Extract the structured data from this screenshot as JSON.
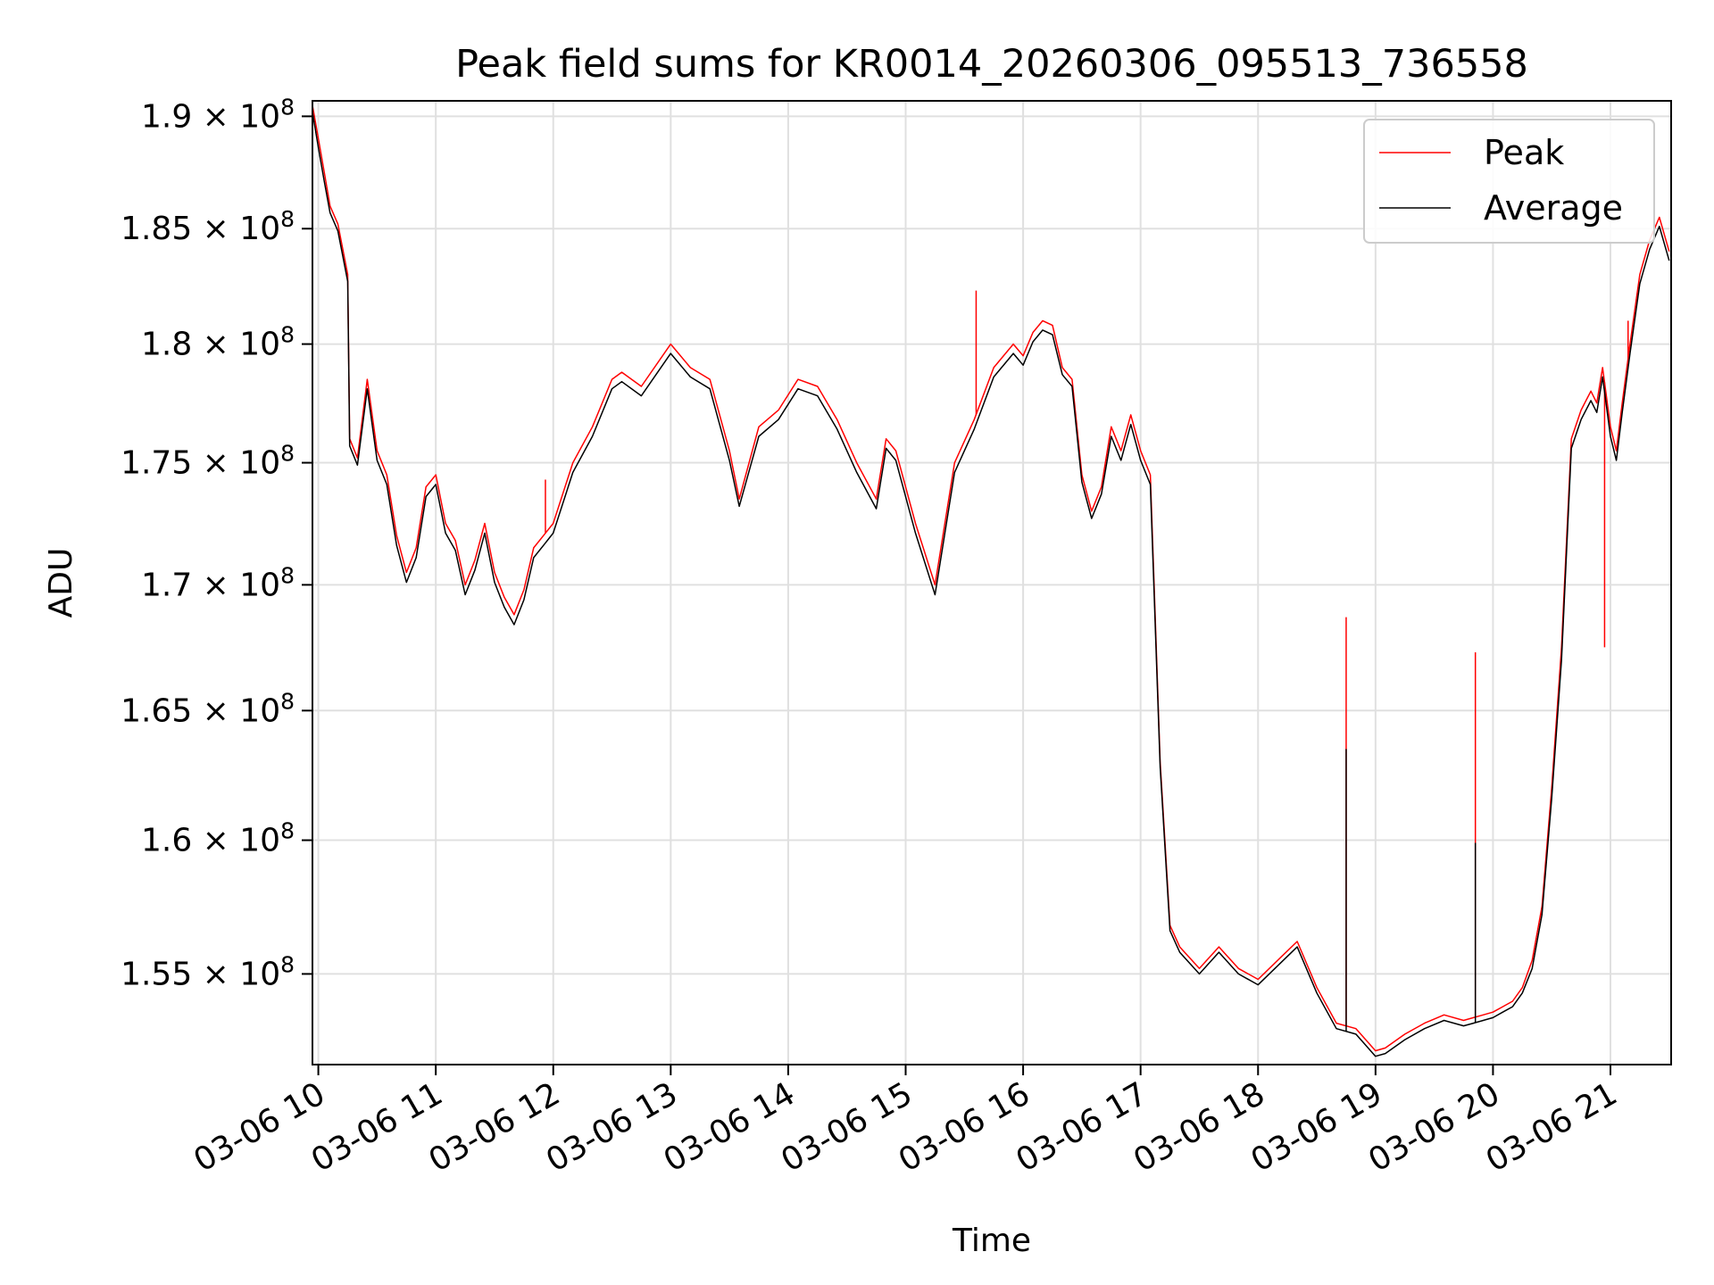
{
  "chart_data": {
    "type": "line",
    "title": "Peak field sums for KR0014_20260306_095513_736558",
    "xlabel": "Time",
    "ylabel": "ADU",
    "x_ticks": [
      "03-06 10",
      "03-06 11",
      "03-06 12",
      "03-06 13",
      "03-06 14",
      "03-06 15",
      "03-06 16",
      "03-06 17",
      "03-06 18",
      "03-06 19",
      "03-06 20",
      "03-06 21"
    ],
    "y_ticks": [
      {
        "value": 155000000,
        "mantissa": "1.55",
        "exponent": "8"
      },
      {
        "value": 160000000,
        "mantissa": "1.6",
        "exponent": "8"
      },
      {
        "value": 165000000,
        "mantissa": "1.65",
        "exponent": "8"
      },
      {
        "value": 170000000,
        "mantissa": "1.7",
        "exponent": "8"
      },
      {
        "value": 175000000,
        "mantissa": "1.75",
        "exponent": "8"
      },
      {
        "value": 180000000,
        "mantissa": "1.8",
        "exponent": "8"
      },
      {
        "value": 185000000,
        "mantissa": "1.85",
        "exponent": "8"
      },
      {
        "value": 190000000,
        "mantissa": "1.9",
        "exponent": "8"
      }
    ],
    "y_scale": "log",
    "xlim": [
      "2026-03-06 09:57",
      "2026-03-06 21:31"
    ],
    "ylim": [
      151700000,
      190700000
    ],
    "grid": true,
    "legend_location": "upper right",
    "series": [
      {
        "name": "Peak",
        "color": "#ff0000",
        "x": [
          "2026-03-06 09:57",
          "2026-03-06 10:00",
          "2026-03-06 10:03",
          "2026-03-06 10:06",
          "2026-03-06 10:10",
          "2026-03-06 10:15",
          "2026-03-06 10:16",
          "2026-03-06 10:20",
          "2026-03-06 10:25",
          "2026-03-06 10:30",
          "2026-03-06 10:35",
          "2026-03-06 10:40",
          "2026-03-06 10:45",
          "2026-03-06 10:50",
          "2026-03-06 10:55",
          "2026-03-06 11:00",
          "2026-03-06 11:05",
          "2026-03-06 11:10",
          "2026-03-06 11:15",
          "2026-03-06 11:20",
          "2026-03-06 11:25",
          "2026-03-06 11:30",
          "2026-03-06 11:35",
          "2026-03-06 11:40",
          "2026-03-06 11:45",
          "2026-03-06 11:50",
          "2026-03-06 11:55",
          "2026-03-06 12:00",
          "2026-03-06 12:10",
          "2026-03-06 12:20",
          "2026-03-06 12:30",
          "2026-03-06 12:35",
          "2026-03-06 12:45",
          "2026-03-06 13:00",
          "2026-03-06 13:10",
          "2026-03-06 13:20",
          "2026-03-06 13:30",
          "2026-03-06 13:35",
          "2026-03-06 13:45",
          "2026-03-06 13:55",
          "2026-03-06 14:05",
          "2026-03-06 14:15",
          "2026-03-06 14:25",
          "2026-03-06 14:35",
          "2026-03-06 14:45",
          "2026-03-06 14:50",
          "2026-03-06 14:55",
          "2026-03-06 15:05",
          "2026-03-06 15:15",
          "2026-03-06 15:25",
          "2026-03-06 15:35",
          "2026-03-06 15:45",
          "2026-03-06 15:55",
          "2026-03-06 16:00",
          "2026-03-06 16:05",
          "2026-03-06 16:10",
          "2026-03-06 16:15",
          "2026-03-06 16:20",
          "2026-03-06 16:25",
          "2026-03-06 16:30",
          "2026-03-06 16:35",
          "2026-03-06 16:40",
          "2026-03-06 16:45",
          "2026-03-06 16:50",
          "2026-03-06 16:55",
          "2026-03-06 17:00",
          "2026-03-06 17:05",
          "2026-03-06 17:10",
          "2026-03-06 17:15",
          "2026-03-06 17:20",
          "2026-03-06 17:30",
          "2026-03-06 17:40",
          "2026-03-06 17:50",
          "2026-03-06 18:00",
          "2026-03-06 18:10",
          "2026-03-06 18:20",
          "2026-03-06 18:30",
          "2026-03-06 18:40",
          "2026-03-06 18:50",
          "2026-03-06 19:00",
          "2026-03-06 19:05",
          "2026-03-06 19:15",
          "2026-03-06 19:25",
          "2026-03-06 19:35",
          "2026-03-06 19:45",
          "2026-03-06 19:50",
          "2026-03-06 19:55",
          "2026-03-06 20:00",
          "2026-03-06 20:05",
          "2026-03-06 20:10",
          "2026-03-06 20:15",
          "2026-03-06 20:20",
          "2026-03-06 20:25",
          "2026-03-06 20:30",
          "2026-03-06 20:35",
          "2026-03-06 20:40",
          "2026-03-06 20:45",
          "2026-03-06 20:50",
          "2026-03-06 20:53",
          "2026-03-06 20:56",
          "2026-03-06 21:00",
          "2026-03-06 21:03",
          "2026-03-06 21:06",
          "2026-03-06 21:10",
          "2026-03-06 21:15",
          "2026-03-06 21:20",
          "2026-03-06 21:25",
          "2026-03-06 21:30"
        ],
        "y": [
          190500000,
          189000000,
          187500000,
          186000000,
          185200000,
          183000000,
          176000000,
          175200000,
          178500000,
          175500000,
          174500000,
          172000000,
          170500000,
          171500000,
          174000000,
          174500000,
          172500000,
          171800000,
          170000000,
          171000000,
          172500000,
          170500000,
          169500000,
          168800000,
          169800000,
          171500000,
          172000000,
          172500000,
          175000000,
          176500000,
          178500000,
          178800000,
          178200000,
          180000000,
          179000000,
          178500000,
          175500000,
          173500000,
          176500000,
          177200000,
          178500000,
          178200000,
          176800000,
          175000000,
          173500000,
          176000000,
          175500000,
          172500000,
          170000000,
          175000000,
          176800000,
          179000000,
          180000000,
          179500000,
          180500000,
          181000000,
          180800000,
          179000000,
          178500000,
          174500000,
          173000000,
          174000000,
          176500000,
          175500000,
          177000000,
          175500000,
          174500000,
          163000000,
          156800000,
          156000000,
          155200000,
          156000000,
          155200000,
          154800000,
          155500000,
          156200000,
          154500000,
          153200000,
          153000000,
          152200000,
          152300000,
          152800000,
          153200000,
          153500000,
          153300000,
          153400000,
          153500000,
          153600000,
          153800000,
          154000000,
          154500000,
          155500000,
          157500000,
          162000000,
          167500000,
          176000000,
          177200000,
          178000000,
          177500000,
          179000000,
          176500000,
          175500000,
          177500000,
          180000000,
          183000000,
          184500000,
          185500000,
          184000000
        ],
        "spikes": [
          {
            "x": "2026-03-06 18:45",
            "y": 168700000
          },
          {
            "x": "2026-03-06 19:51",
            "y": 167300000
          },
          {
            "x": "2026-03-06 20:57",
            "y": 167500000
          },
          {
            "x": "2026-03-06 21:09",
            "y": 181000000
          },
          {
            "x": "2026-03-06 15:36",
            "y": 182300000
          },
          {
            "x": "2026-03-06 11:56",
            "y": 174300000
          }
        ]
      },
      {
        "name": "Average",
        "color": "#000000",
        "x": [
          "2026-03-06 09:57",
          "2026-03-06 10:00",
          "2026-03-06 10:03",
          "2026-03-06 10:06",
          "2026-03-06 10:10",
          "2026-03-06 10:15",
          "2026-03-06 10:16",
          "2026-03-06 10:20",
          "2026-03-06 10:25",
          "2026-03-06 10:30",
          "2026-03-06 10:35",
          "2026-03-06 10:40",
          "2026-03-06 10:45",
          "2026-03-06 10:50",
          "2026-03-06 10:55",
          "2026-03-06 11:00",
          "2026-03-06 11:05",
          "2026-03-06 11:10",
          "2026-03-06 11:15",
          "2026-03-06 11:20",
          "2026-03-06 11:25",
          "2026-03-06 11:30",
          "2026-03-06 11:35",
          "2026-03-06 11:40",
          "2026-03-06 11:45",
          "2026-03-06 11:50",
          "2026-03-06 11:55",
          "2026-03-06 12:00",
          "2026-03-06 12:10",
          "2026-03-06 12:20",
          "2026-03-06 12:30",
          "2026-03-06 12:35",
          "2026-03-06 12:45",
          "2026-03-06 13:00",
          "2026-03-06 13:10",
          "2026-03-06 13:20",
          "2026-03-06 13:30",
          "2026-03-06 13:35",
          "2026-03-06 13:45",
          "2026-03-06 13:55",
          "2026-03-06 14:05",
          "2026-03-06 14:15",
          "2026-03-06 14:25",
          "2026-03-06 14:35",
          "2026-03-06 14:45",
          "2026-03-06 14:50",
          "2026-03-06 14:55",
          "2026-03-06 15:05",
          "2026-03-06 15:15",
          "2026-03-06 15:25",
          "2026-03-06 15:35",
          "2026-03-06 15:45",
          "2026-03-06 15:55",
          "2026-03-06 16:00",
          "2026-03-06 16:05",
          "2026-03-06 16:10",
          "2026-03-06 16:15",
          "2026-03-06 16:20",
          "2026-03-06 16:25",
          "2026-03-06 16:30",
          "2026-03-06 16:35",
          "2026-03-06 16:40",
          "2026-03-06 16:45",
          "2026-03-06 16:50",
          "2026-03-06 16:55",
          "2026-03-06 17:00",
          "2026-03-06 17:05",
          "2026-03-06 17:10",
          "2026-03-06 17:15",
          "2026-03-06 17:20",
          "2026-03-06 17:30",
          "2026-03-06 17:40",
          "2026-03-06 17:50",
          "2026-03-06 18:00",
          "2026-03-06 18:10",
          "2026-03-06 18:20",
          "2026-03-06 18:30",
          "2026-03-06 18:40",
          "2026-03-06 18:50",
          "2026-03-06 19:00",
          "2026-03-06 19:05",
          "2026-03-06 19:15",
          "2026-03-06 19:25",
          "2026-03-06 19:35",
          "2026-03-06 19:45",
          "2026-03-06 19:50",
          "2026-03-06 19:55",
          "2026-03-06 20:00",
          "2026-03-06 20:05",
          "2026-03-06 20:10",
          "2026-03-06 20:15",
          "2026-03-06 20:20",
          "2026-03-06 20:25",
          "2026-03-06 20:30",
          "2026-03-06 20:35",
          "2026-03-06 20:40",
          "2026-03-06 20:45",
          "2026-03-06 20:50",
          "2026-03-06 20:53",
          "2026-03-06 20:56",
          "2026-03-06 21:00",
          "2026-03-06 21:03",
          "2026-03-06 21:06",
          "2026-03-06 21:10",
          "2026-03-06 21:15",
          "2026-03-06 21:20",
          "2026-03-06 21:25",
          "2026-03-06 21:30"
        ],
        "y": [
          190200000,
          188600000,
          187100000,
          185700000,
          184900000,
          182700000,
          175700000,
          174900000,
          178100000,
          175100000,
          174100000,
          171600000,
          170100000,
          171100000,
          173600000,
          174100000,
          172100000,
          171400000,
          169600000,
          170600000,
          172100000,
          170100000,
          169100000,
          168400000,
          169400000,
          171100000,
          171600000,
          172100000,
          174600000,
          176100000,
          178100000,
          178400000,
          177800000,
          179600000,
          178600000,
          178100000,
          175100000,
          173200000,
          176100000,
          176800000,
          178100000,
          177800000,
          176400000,
          174600000,
          173100000,
          175600000,
          175100000,
          172100000,
          169600000,
          174600000,
          176400000,
          178600000,
          179600000,
          179100000,
          180100000,
          180600000,
          180400000,
          178700000,
          178200000,
          174200000,
          172700000,
          173700000,
          176100000,
          175100000,
          176600000,
          175100000,
          174100000,
          162800000,
          156600000,
          155800000,
          155000000,
          155800000,
          155000000,
          154600000,
          155300000,
          156000000,
          154300000,
          153000000,
          152800000,
          152000000,
          152100000,
          152600000,
          153000000,
          153300000,
          153100000,
          153200000,
          153300000,
          153400000,
          153600000,
          153800000,
          154300000,
          155200000,
          157200000,
          161600000,
          167000000,
          175600000,
          176800000,
          177600000,
          177100000,
          178600000,
          176100000,
          175100000,
          177100000,
          179600000,
          182600000,
          184100000,
          185100000,
          183600000
        ],
        "spikes": [
          {
            "x": "2026-03-06 18:45",
            "y": 163500000
          },
          {
            "x": "2026-03-06 19:51",
            "y": 159900000
          }
        ]
      }
    ]
  }
}
